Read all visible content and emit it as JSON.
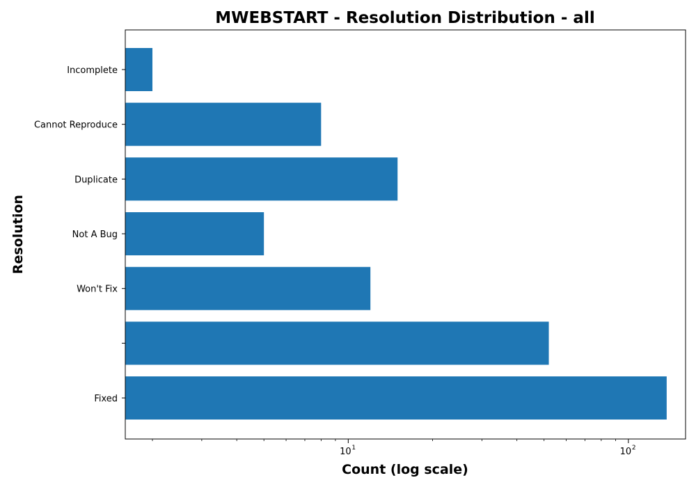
{
  "chart_data": {
    "type": "bar",
    "orientation": "horizontal",
    "title": "MWEBSTART - Resolution Distribution - all",
    "xlabel": "Count (log scale)",
    "ylabel": "Resolution",
    "x_scale": "log",
    "xlim": [
      1.6,
      160
    ],
    "x_major_ticks": [
      {
        "value": 10,
        "base": "10",
        "exponent": "1"
      },
      {
        "value": 100,
        "base": "10",
        "exponent": "2"
      }
    ],
    "categories": [
      "Incomplete",
      "Cannot Reproduce",
      "Duplicate",
      "Not A Bug",
      "Won't Fix",
      "",
      "Fixed"
    ],
    "values": [
      2,
      8,
      15,
      5,
      12,
      52,
      137
    ],
    "bar_color": "#1f77b4",
    "grid": false,
    "legend": "none"
  }
}
